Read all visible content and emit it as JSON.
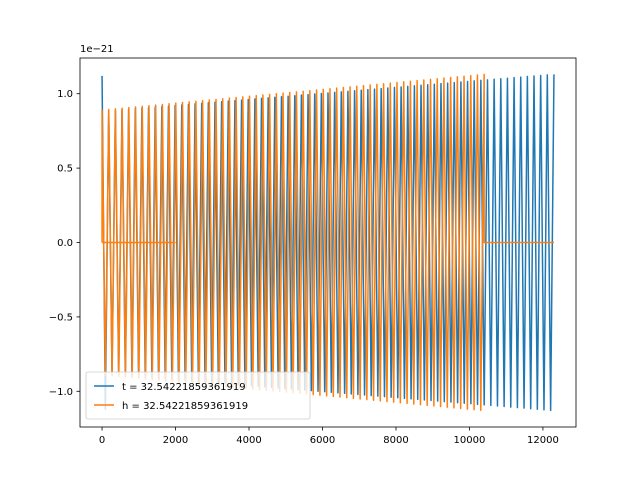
{
  "chart_data": {
    "type": "line",
    "title": "",
    "xlabel": "",
    "ylabel": "",
    "xlim": [
      -600,
      12900
    ],
    "ylim": [
      -1.24,
      1.24
    ],
    "y_offset_label": "1e−21",
    "grid": false,
    "legend_placement": "lower-left",
    "x_ticks": [
      0,
      2000,
      4000,
      6000,
      8000,
      10000,
      12000
    ],
    "x_tick_labels": [
      "0",
      "2000",
      "4000",
      "6000",
      "8000",
      "10000",
      "12000"
    ],
    "y_ticks": [
      -1.0,
      -0.5,
      0.0,
      0.5,
      1.0
    ],
    "y_tick_labels": [
      "−1.0",
      "−0.5",
      "0.0",
      "0.5",
      "1.0"
    ],
    "series": [
      {
        "name": "t = 32.54221859361919",
        "color": "#1f77b4",
        "x_range": [
          0,
          12300
        ],
        "start_amplitude": 1.12,
        "min_amplitude": 0.88,
        "end_amplitude": 1.13,
        "cycles": 68,
        "zero_segments": []
      },
      {
        "name": "h = 32.54221859361919",
        "color": "#ff7f0e",
        "x_range": [
          0,
          12300
        ],
        "start_amplitude": 0.89,
        "end_amplitude": 1.13,
        "oscillation_range": [
          0,
          10400
        ],
        "cycles": 57,
        "zero_segments": [
          [
            0,
            2000
          ],
          [
            10400,
            12300
          ]
        ]
      }
    ]
  }
}
